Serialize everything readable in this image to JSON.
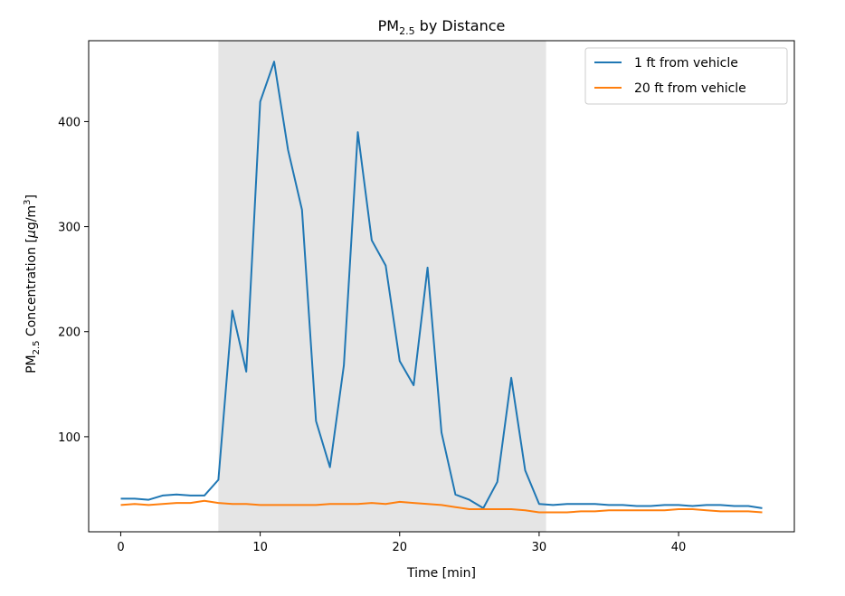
{
  "chart_data": {
    "type": "line",
    "title": {
      "main": "PM",
      "sub": "2.5",
      "rest": " by Distance"
    },
    "xlabel": "Time [min]",
    "ylabel": {
      "main": "PM",
      "sub": "2.5",
      "rest": " Concentration [",
      "mu": "μ",
      "unit": "g/m",
      "sup": "3",
      "close": "]"
    },
    "xlim": [
      -2.3,
      48.3
    ],
    "ylim": [
      9.5,
      477
    ],
    "xticks": [
      0,
      10,
      20,
      30,
      40
    ],
    "yticks": [
      100,
      200,
      300,
      400
    ],
    "grid": false,
    "legend_position": "top-right",
    "shaded_region": {
      "x_start": 7,
      "x_end": 30.5,
      "color": "#e5e5e5"
    },
    "series": [
      {
        "name": "1 ft from vehicle",
        "color": "#1f77b4",
        "x": [
          0,
          1,
          2,
          3,
          4,
          5,
          6,
          7,
          8,
          9,
          10,
          11,
          12,
          13,
          14,
          15,
          16,
          17,
          18,
          19,
          20,
          21,
          22,
          23,
          24,
          25,
          26,
          27,
          28,
          29,
          30,
          31,
          32,
          33,
          34,
          35,
          36,
          37,
          38,
          39,
          40,
          41,
          42,
          43,
          44,
          45,
          46
        ],
        "y": [
          41,
          41,
          40,
          44,
          45,
          44,
          44,
          59,
          220,
          162,
          419,
          457,
          373,
          316,
          115,
          71,
          168,
          390,
          287,
          263,
          172,
          149,
          261,
          104,
          45,
          40,
          32,
          57,
          156,
          68,
          36,
          35,
          36,
          36,
          36,
          35,
          35,
          34,
          34,
          35,
          35,
          34,
          35,
          35,
          34,
          34,
          32
        ]
      },
      {
        "name": "20 ft from vehicle",
        "color": "#ff7f0e",
        "x": [
          0,
          1,
          2,
          3,
          4,
          5,
          6,
          7,
          8,
          9,
          10,
          11,
          12,
          13,
          14,
          15,
          16,
          17,
          18,
          19,
          20,
          21,
          22,
          23,
          24,
          25,
          26,
          27,
          28,
          29,
          30,
          31,
          32,
          33,
          34,
          35,
          36,
          37,
          38,
          39,
          40,
          41,
          42,
          43,
          44,
          45,
          46
        ],
        "y": [
          35,
          36,
          35,
          36,
          37,
          37,
          39,
          37,
          36,
          36,
          35,
          35,
          35,
          35,
          35,
          36,
          36,
          36,
          37,
          36,
          38,
          37,
          36,
          35,
          33,
          31,
          31,
          31,
          31,
          30,
          28,
          28,
          28,
          29,
          29,
          30,
          30,
          30,
          30,
          30,
          31,
          31,
          30,
          29,
          29,
          29,
          28
        ]
      }
    ]
  }
}
